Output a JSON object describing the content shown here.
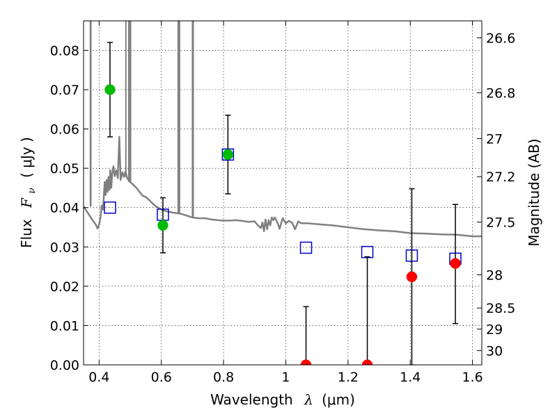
{
  "chart_data": {
    "type": "scatter",
    "xlabel_main": "Wavelength",
    "xlabel_symbol": "λ",
    "xlabel_unit": "(μm)",
    "ylabel_main": "Flux",
    "ylabel_symbol": "F",
    "ylabel_symbol_sub": "ν",
    "ylabel_unit": "( μJy )",
    "ylabel_right": "Magnitude (AB)",
    "xlim": [
      0.35,
      1.63
    ],
    "ylim": [
      0.0,
      0.0875
    ],
    "grid": true,
    "x_ticks": [
      0.4,
      0.6,
      0.8,
      1.0,
      1.2,
      1.4,
      1.6
    ],
    "x_tick_labels": [
      "0.4",
      "0.6",
      "0.8",
      "1",
      "1.2",
      "1.4",
      "1.6"
    ],
    "y_ticks": [
      0.0,
      0.01,
      0.02,
      0.03,
      0.04,
      0.05,
      0.06,
      0.07,
      0.08
    ],
    "y_tick_labels": [
      "0.00",
      "0.01",
      "0.02",
      "0.03",
      "0.04",
      "0.05",
      "0.06",
      "0.07",
      "0.08"
    ],
    "right_ticks": [
      {
        "mag": 26.6,
        "label": "26.6"
      },
      {
        "mag": 26.8,
        "label": "26.8"
      },
      {
        "mag": 27.0,
        "label": "27"
      },
      {
        "mag": 27.2,
        "label": "27.2"
      },
      {
        "mag": 27.5,
        "label": "27.5"
      },
      {
        "mag": 28.0,
        "label": "28"
      },
      {
        "mag": 28.5,
        "label": "28.5"
      },
      {
        "mag": 29.0,
        "label": "29"
      },
      {
        "mag": 30.0,
        "label": "30"
      }
    ],
    "colors": {
      "model": "#808080",
      "green": "#00bb00",
      "red": "#ff0000",
      "square": "#0000cc",
      "errorbar": "#000000"
    },
    "model_sed": [
      [
        0.35,
        0.0403
      ],
      [
        0.365,
        0.0385
      ],
      [
        0.38,
        0.0367
      ],
      [
        0.39,
        0.0356
      ],
      [
        0.395,
        0.0347
      ],
      [
        0.4,
        0.0356
      ],
      [
        0.405,
        0.0378
      ],
      [
        0.408,
        0.0405
      ],
      [
        0.412,
        0.0395
      ],
      [
        0.415,
        0.0425
      ],
      [
        0.418,
        0.0465
      ],
      [
        0.421,
        0.0432
      ],
      [
        0.424,
        0.047
      ],
      [
        0.427,
        0.044
      ],
      [
        0.43,
        0.0478
      ],
      [
        0.433,
        0.0445
      ],
      [
        0.436,
        0.0495
      ],
      [
        0.439,
        0.045
      ],
      [
        0.442,
        0.0485
      ],
      [
        0.446,
        0.0505
      ],
      [
        0.45,
        0.048
      ],
      [
        0.455,
        0.0495
      ],
      [
        0.46,
        0.0475
      ],
      [
        0.465,
        0.058
      ],
      [
        0.469,
        0.047
      ],
      [
        0.475,
        0.049
      ],
      [
        0.48,
        0.0478
      ],
      [
        0.485,
        0.0492
      ],
      [
        0.49,
        0.0475
      ],
      [
        0.5,
        0.0465
      ],
      [
        0.51,
        0.0458
      ],
      [
        0.52,
        0.045
      ],
      [
        0.53,
        0.044
      ],
      [
        0.54,
        0.043
      ],
      [
        0.55,
        0.0427
      ],
      [
        0.56,
        0.042
      ],
      [
        0.57,
        0.0412
      ],
      [
        0.58,
        0.0405
      ],
      [
        0.59,
        0.04
      ],
      [
        0.6,
        0.0395
      ],
      [
        0.62,
        0.039
      ],
      [
        0.64,
        0.0387
      ],
      [
        0.66,
        0.0385
      ],
      [
        0.68,
        0.038
      ],
      [
        0.7,
        0.0375
      ],
      [
        0.72,
        0.0373
      ],
      [
        0.74,
        0.0373
      ],
      [
        0.76,
        0.037
      ],
      [
        0.78,
        0.0368
      ],
      [
        0.8,
        0.0367
      ],
      [
        0.82,
        0.0367
      ],
      [
        0.84,
        0.0368
      ],
      [
        0.86,
        0.0366
      ],
      [
        0.88,
        0.0364
      ],
      [
        0.9,
        0.0365
      ],
      [
        0.91,
        0.0355
      ],
      [
        0.92,
        0.0348
      ],
      [
        0.925,
        0.0362
      ],
      [
        0.93,
        0.034
      ],
      [
        0.935,
        0.037
      ],
      [
        0.94,
        0.0345
      ],
      [
        0.945,
        0.0368
      ],
      [
        0.95,
        0.0355
      ],
      [
        0.955,
        0.0375
      ],
      [
        0.96,
        0.0368
      ],
      [
        0.965,
        0.0375
      ],
      [
        0.97,
        0.0367
      ],
      [
        0.975,
        0.0358
      ],
      [
        0.98,
        0.0346
      ],
      [
        0.985,
        0.036
      ],
      [
        0.99,
        0.0373
      ],
      [
        1.0,
        0.036
      ],
      [
        1.01,
        0.0366
      ],
      [
        1.02,
        0.0362
      ],
      [
        1.03,
        0.0345
      ],
      [
        1.035,
        0.0355
      ],
      [
        1.04,
        0.0365
      ],
      [
        1.05,
        0.036
      ],
      [
        1.07,
        0.036
      ],
      [
        1.1,
        0.0358
      ],
      [
        1.15,
        0.0355
      ],
      [
        1.2,
        0.035
      ],
      [
        1.25,
        0.0345
      ],
      [
        1.3,
        0.0342
      ],
      [
        1.35,
        0.034
      ],
      [
        1.4,
        0.0335
      ],
      [
        1.45,
        0.0334
      ],
      [
        1.5,
        0.0332
      ],
      [
        1.55,
        0.0331
      ],
      [
        1.6,
        0.0327
      ],
      [
        1.63,
        0.0327
      ]
    ],
    "emission_lines": [
      [
        0.372,
        0.0403,
        0.0875
      ],
      [
        0.3735,
        0.0403,
        0.0875
      ],
      [
        0.486,
        0.0478,
        0.0875
      ],
      [
        0.4955,
        0.0465,
        0.0875
      ],
      [
        0.5,
        0.0465,
        0.0875
      ],
      [
        0.5012,
        0.0465,
        0.0875
      ],
      [
        0.654,
        0.0383,
        0.0875
      ],
      [
        0.6563,
        0.0383,
        0.0875
      ],
      [
        0.6585,
        0.0383,
        0.0875
      ],
      [
        0.7,
        0.0377,
        0.0875
      ],
      [
        0.7025,
        0.0377,
        0.0875
      ]
    ],
    "observed_points": [
      {
        "x": 0.435,
        "y": 0.07,
        "yerr_low": 0.058,
        "yerr_high": 0.082,
        "marker": "green"
      },
      {
        "x": 0.605,
        "y": 0.0355,
        "yerr_low": 0.0285,
        "yerr_high": 0.0425,
        "marker": "green"
      },
      {
        "x": 0.814,
        "y": 0.0535,
        "yerr_low": 0.0435,
        "yerr_high": 0.0635,
        "marker": "green"
      },
      {
        "x": 1.065,
        "y": 0.0,
        "yerr_low": 0.0,
        "yerr_high": 0.0148,
        "marker": "red"
      },
      {
        "x": 1.262,
        "y": 0.0,
        "yerr_low": 0.0,
        "yerr_high": 0.0275,
        "marker": "red"
      },
      {
        "x": 1.405,
        "y": 0.0224,
        "yerr_low": 0.0,
        "yerr_high": 0.0448,
        "marker": "red"
      },
      {
        "x": 1.545,
        "y": 0.0258,
        "yerr_low": 0.0105,
        "yerr_high": 0.0408,
        "marker": "red"
      }
    ],
    "model_photometry": [
      {
        "x": 0.435,
        "y": 0.04
      },
      {
        "x": 0.605,
        "y": 0.0382
      },
      {
        "x": 0.814,
        "y": 0.0535
      },
      {
        "x": 1.065,
        "y": 0.0298
      },
      {
        "x": 1.262,
        "y": 0.0287
      },
      {
        "x": 1.405,
        "y": 0.0278
      },
      {
        "x": 1.545,
        "y": 0.027
      }
    ]
  }
}
